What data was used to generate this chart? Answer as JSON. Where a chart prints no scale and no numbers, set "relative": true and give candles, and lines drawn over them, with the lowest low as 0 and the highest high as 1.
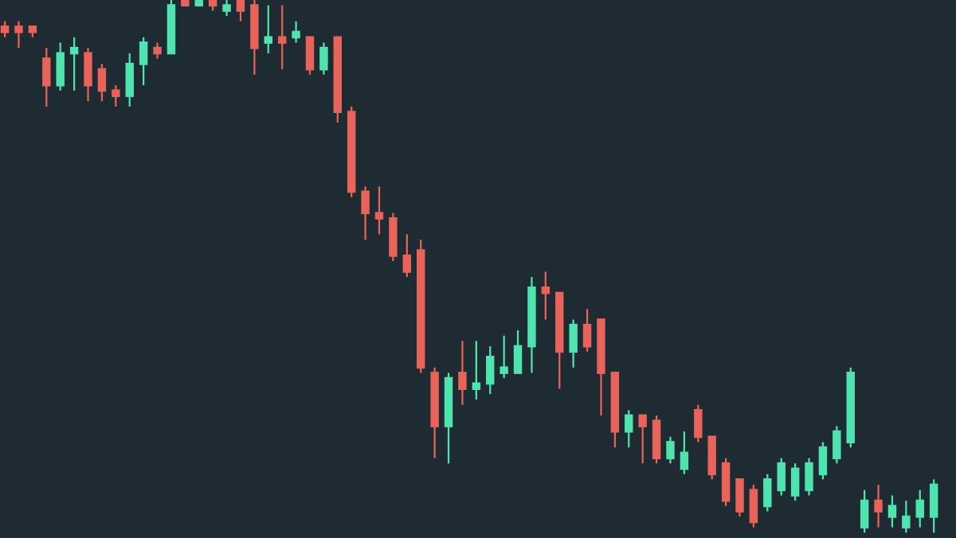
{
  "chart_data": {
    "type": "candlestick",
    "relative": true,
    "categories": [
      null,
      null,
      null,
      null,
      null,
      null,
      null,
      null,
      null,
      null,
      null,
      null,
      null,
      null,
      null,
      null,
      null,
      null,
      null,
      null,
      null,
      null,
      null,
      null,
      null,
      null,
      null,
      null,
      null,
      null,
      null,
      null,
      null,
      null,
      null,
      null,
      null,
      null,
      null,
      null,
      null,
      null,
      null,
      null,
      null,
      null,
      null,
      null,
      null,
      null,
      null,
      null,
      null,
      null,
      null,
      null,
      null,
      null,
      null,
      null,
      null,
      null,
      null,
      null,
      null,
      null,
      null,
      null
    ],
    "ohlc": [
      [
        0.95,
        0.96,
        0.93,
        0.94
      ],
      [
        0.95,
        0.96,
        0.91,
        0.94
      ],
      [
        0.95,
        0.95,
        0.93,
        0.94
      ],
      [
        0.89,
        0.91,
        0.8,
        0.84
      ],
      [
        0.84,
        0.92,
        0.83,
        0.9
      ],
      [
        0.9,
        0.93,
        0.83,
        0.91
      ],
      [
        0.9,
        0.91,
        0.81,
        0.84
      ],
      [
        0.87,
        0.88,
        0.81,
        0.83
      ],
      [
        0.83,
        0.84,
        0.8,
        0.82
      ],
      [
        0.82,
        0.9,
        0.8,
        0.88
      ],
      [
        0.88,
        0.93,
        0.84,
        0.92
      ],
      [
        0.91,
        0.92,
        0.89,
        0.9
      ],
      [
        0.9,
        1,
        0.9,
        0.99
      ],
      [
        1,
        1,
        0.99,
        0.99
      ],
      [
        0.99,
        1,
        0.99,
        1
      ],
      [
        1,
        1,
        0.98,
        0.99
      ],
      [
        0.98,
        1,
        0.97,
        0.99
      ],
      [
        1,
        1,
        0.96,
        0.98
      ],
      [
        0.99,
        1,
        0.86,
        0.91
      ],
      [
        0.92,
        0.99,
        0.9,
        0.93
      ],
      [
        0.93,
        0.99,
        0.87,
        0.92
      ],
      [
        0.93,
        0.96,
        0.92,
        0.94
      ],
      [
        0.93,
        0.93,
        0.86,
        0.87
      ],
      [
        0.87,
        0.92,
        0.86,
        0.91
      ],
      [
        0.93,
        0.93,
        0.77,
        0.79
      ],
      [
        0.79,
        0.8,
        0.63,
        0.64
      ],
      [
        0.64,
        0.65,
        0.55,
        0.6
      ],
      [
        0.6,
        0.65,
        0.56,
        0.59
      ],
      [
        0.59,
        0.6,
        0.51,
        0.52
      ],
      [
        0.52,
        0.56,
        0.48,
        0.49
      ],
      [
        0.53,
        0.55,
        0.3,
        0.31
      ],
      [
        0.3,
        0.31,
        0.14,
        0.2
      ],
      [
        0.2,
        0.3,
        0.13,
        0.29
      ],
      [
        0.3,
        0.36,
        0.24,
        0.27
      ],
      [
        0.27,
        0.36,
        0.25,
        0.28
      ],
      [
        0.28,
        0.35,
        0.26,
        0.33
      ],
      [
        0.3,
        0.37,
        0.29,
        0.31
      ],
      [
        0.3,
        0.38,
        0.3,
        0.35
      ],
      [
        0.35,
        0.48,
        0.3,
        0.46
      ],
      [
        0.46,
        0.49,
        0.4,
        0.45
      ],
      [
        0.45,
        0.45,
        0.27,
        0.34
      ],
      [
        0.34,
        0.4,
        0.31,
        0.39
      ],
      [
        0.39,
        0.42,
        0.34,
        0.35
      ],
      [
        0.4,
        0.4,
        0.22,
        0.3
      ],
      [
        0.3,
        0.3,
        0.16,
        0.19
      ],
      [
        0.19,
        0.23,
        0.16,
        0.22
      ],
      [
        0.22,
        0.22,
        0.13,
        0.2
      ],
      [
        0.21,
        0.22,
        0.13,
        0.14
      ],
      [
        0.14,
        0.18,
        0.13,
        0.17
      ],
      [
        0.12,
        0.19,
        0.11,
        0.15
      ],
      [
        0.23,
        0.24,
        0.17,
        0.18
      ],
      [
        0.18,
        0.18,
        0.1,
        0.11
      ],
      [
        0.13,
        0.14,
        0.05,
        0.06
      ],
      [
        0.1,
        0.1,
        0.03,
        0.04
      ],
      [
        0.08,
        0.09,
        0.01,
        0.02
      ],
      [
        0.05,
        0.11,
        0.04,
        0.1
      ],
      [
        0.08,
        0.14,
        0.07,
        0.13
      ],
      [
        0.07,
        0.13,
        0.06,
        0.12
      ],
      [
        0.08,
        0.14,
        0.07,
        0.13
      ],
      [
        0.11,
        0.17,
        0.1,
        0.16
      ],
      [
        0.14,
        0.2,
        0.13,
        0.19
      ],
      [
        0.17,
        0.31,
        0.16,
        0.3
      ],
      [
        0.01,
        0.08,
        0,
        0.06
      ],
      [
        0.06,
        0.09,
        0.01,
        0.04
      ],
      [
        0.03,
        0.07,
        0.01,
        0.05
      ],
      [
        0.01,
        0.06,
        0,
        0.03
      ],
      [
        0.03,
        0.08,
        0.01,
        0.06
      ],
      [
        0.03,
        0.1,
        0,
        0.09
      ]
    ],
    "colors": [
      "#e8635a",
      "#e8635a",
      "#e8635a",
      "#e8635a",
      "#4fe3b0",
      "#4fe3b0",
      "#e8635a",
      "#e8635a",
      "#e8635a",
      "#4fe3b0",
      "#4fe3b0",
      "#e8635a",
      "#4fe3b0",
      "#e8635a",
      "#4fe3b0",
      "#e8635a",
      "#4fe3b0",
      "#e8635a",
      "#e8635a",
      "#4fe3b0",
      "#e8635a",
      "#4fe3b0",
      "#e8635a",
      "#4fe3b0",
      "#e8635a",
      "#e8635a",
      "#e8635a",
      "#e8635a",
      "#e8635a",
      "#e8635a",
      "#e8635a",
      "#e8635a",
      "#4fe3b0",
      "#e8635a",
      "#4fe3b0",
      "#4fe3b0",
      "#4fe3b0",
      "#4fe3b0",
      "#4fe3b0",
      "#e8635a",
      "#e8635a",
      "#4fe3b0",
      "#e8635a",
      "#e8635a",
      "#e8635a",
      "#4fe3b0",
      "#e8635a",
      "#e8635a",
      "#4fe3b0",
      "#4fe3b0",
      "#e8635a",
      "#e8635a",
      "#e8635a",
      "#e8635a",
      "#e8635a",
      "#4fe3b0",
      "#4fe3b0",
      "#4fe3b0",
      "#4fe3b0",
      "#4fe3b0",
      "#4fe3b0",
      "#4fe3b0",
      "#4fe3b0",
      "#e8635a",
      "#4fe3b0",
      "#4fe3b0",
      "#4fe3b0",
      "#4fe3b0"
    ]
  }
}
